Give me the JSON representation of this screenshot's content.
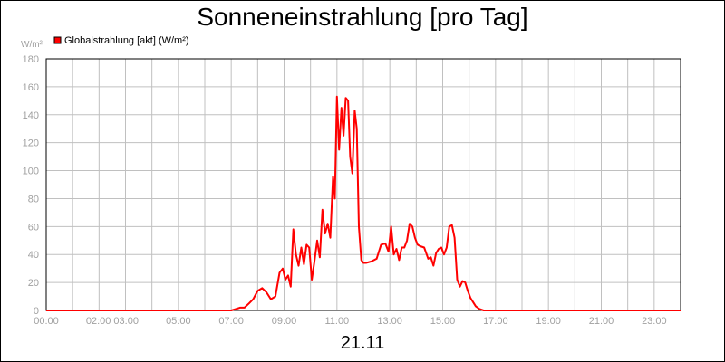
{
  "chart_data": {
    "type": "line",
    "title": "Sonneneinstrahlung [pro Tag]",
    "xlabel": "21.11",
    "y_unit": "W/m²",
    "x_tick_labels": [
      "00:00",
      "02:00 03:00",
      "05:00",
      "07:00",
      "09:00",
      "11:00",
      "13:00",
      "15:00",
      "17:00",
      "19:00",
      "21:00",
      "23:00"
    ],
    "y_ticks": [
      0,
      20,
      40,
      60,
      80,
      100,
      120,
      140,
      160,
      180
    ],
    "ylim": [
      0,
      180
    ],
    "xlim": [
      0,
      24
    ],
    "grid": true,
    "legend_position": "top-left",
    "series": [
      {
        "name": "Globalstrahlung [akt] (W/m²)",
        "color": "#ff0000",
        "x": [
          0,
          7.0,
          7.17,
          7.33,
          7.5,
          7.67,
          7.83,
          8.0,
          8.17,
          8.33,
          8.5,
          8.67,
          8.83,
          8.95,
          9.05,
          9.15,
          9.25,
          9.35,
          9.45,
          9.55,
          9.65,
          9.75,
          9.85,
          9.95,
          10.05,
          10.15,
          10.25,
          10.35,
          10.45,
          10.55,
          10.65,
          10.75,
          10.85,
          10.92,
          11.0,
          11.08,
          11.17,
          11.25,
          11.33,
          11.42,
          11.5,
          11.58,
          11.67,
          11.75,
          11.83,
          11.92,
          12.0,
          12.1,
          12.3,
          12.5,
          12.67,
          12.83,
          12.95,
          13.05,
          13.15,
          13.25,
          13.35,
          13.45,
          13.55,
          13.65,
          13.75,
          13.85,
          13.95,
          14.05,
          14.15,
          14.3,
          14.45,
          14.55,
          14.65,
          14.75,
          14.85,
          14.95,
          15.05,
          15.15,
          15.25,
          15.35,
          15.45,
          15.55,
          15.65,
          15.75,
          15.85,
          15.95,
          16.05,
          16.15,
          16.25,
          16.4,
          16.55,
          16.7,
          16.85,
          17.0,
          17.2,
          24.0
        ],
        "values": [
          0,
          0,
          1,
          2,
          2,
          5,
          8,
          14,
          16,
          13,
          8,
          10,
          27,
          30,
          22,
          25,
          17,
          58,
          40,
          32,
          45,
          33,
          47,
          45,
          22,
          35,
          50,
          38,
          72,
          55,
          62,
          52,
          96,
          80,
          153,
          115,
          145,
          125,
          152,
          150,
          110,
          98,
          143,
          130,
          60,
          36,
          34,
          34,
          35,
          37,
          47,
          48,
          42,
          60,
          40,
          44,
          36,
          45,
          45,
          50,
          62,
          60,
          52,
          47,
          46,
          45,
          37,
          38,
          32,
          41,
          44,
          45,
          40,
          45,
          60,
          61,
          52,
          22,
          17,
          21,
          20,
          14,
          9,
          6,
          3,
          1,
          0,
          0,
          0,
          0,
          0,
          0
        ]
      }
    ]
  }
}
